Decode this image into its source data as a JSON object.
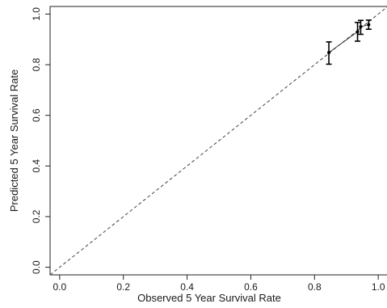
{
  "chart_data": {
    "type": "scatter",
    "title": "",
    "xlabel": "Observed 5 Year Survival Rate",
    "ylabel": "Predicted 5 Year Survival Rate",
    "xlim": [
      -0.03,
      1.03
    ],
    "ylim": [
      -0.03,
      1.03
    ],
    "x_ticks": [
      "0.0",
      "0.2",
      "0.4",
      "0.6",
      "0.8",
      "1.0"
    ],
    "y_ticks": [
      "0.0",
      "0.2",
      "0.4",
      "0.6",
      "0.8",
      "1.0"
    ],
    "grid": false,
    "reference_line": {
      "style": "dashed",
      "from": [
        -0.03,
        -0.03
      ],
      "to": [
        1.03,
        1.03
      ]
    },
    "points": [
      {
        "x": 0.845,
        "y": 0.848,
        "ylow": 0.802,
        "yhigh": 0.89
      },
      {
        "x": 0.935,
        "y": 0.93,
        "ylow": 0.893,
        "yhigh": 0.967
      },
      {
        "x": 0.945,
        "y": 0.95,
        "ylow": 0.92,
        "yhigh": 0.975
      },
      {
        "x": 0.97,
        "y": 0.958,
        "ylow": 0.94,
        "yhigh": 0.976
      }
    ],
    "calibration_curve": [
      [
        0.845,
        0.848
      ],
      [
        0.935,
        0.93
      ],
      [
        0.945,
        0.95
      ],
      [
        0.97,
        0.958
      ]
    ]
  }
}
